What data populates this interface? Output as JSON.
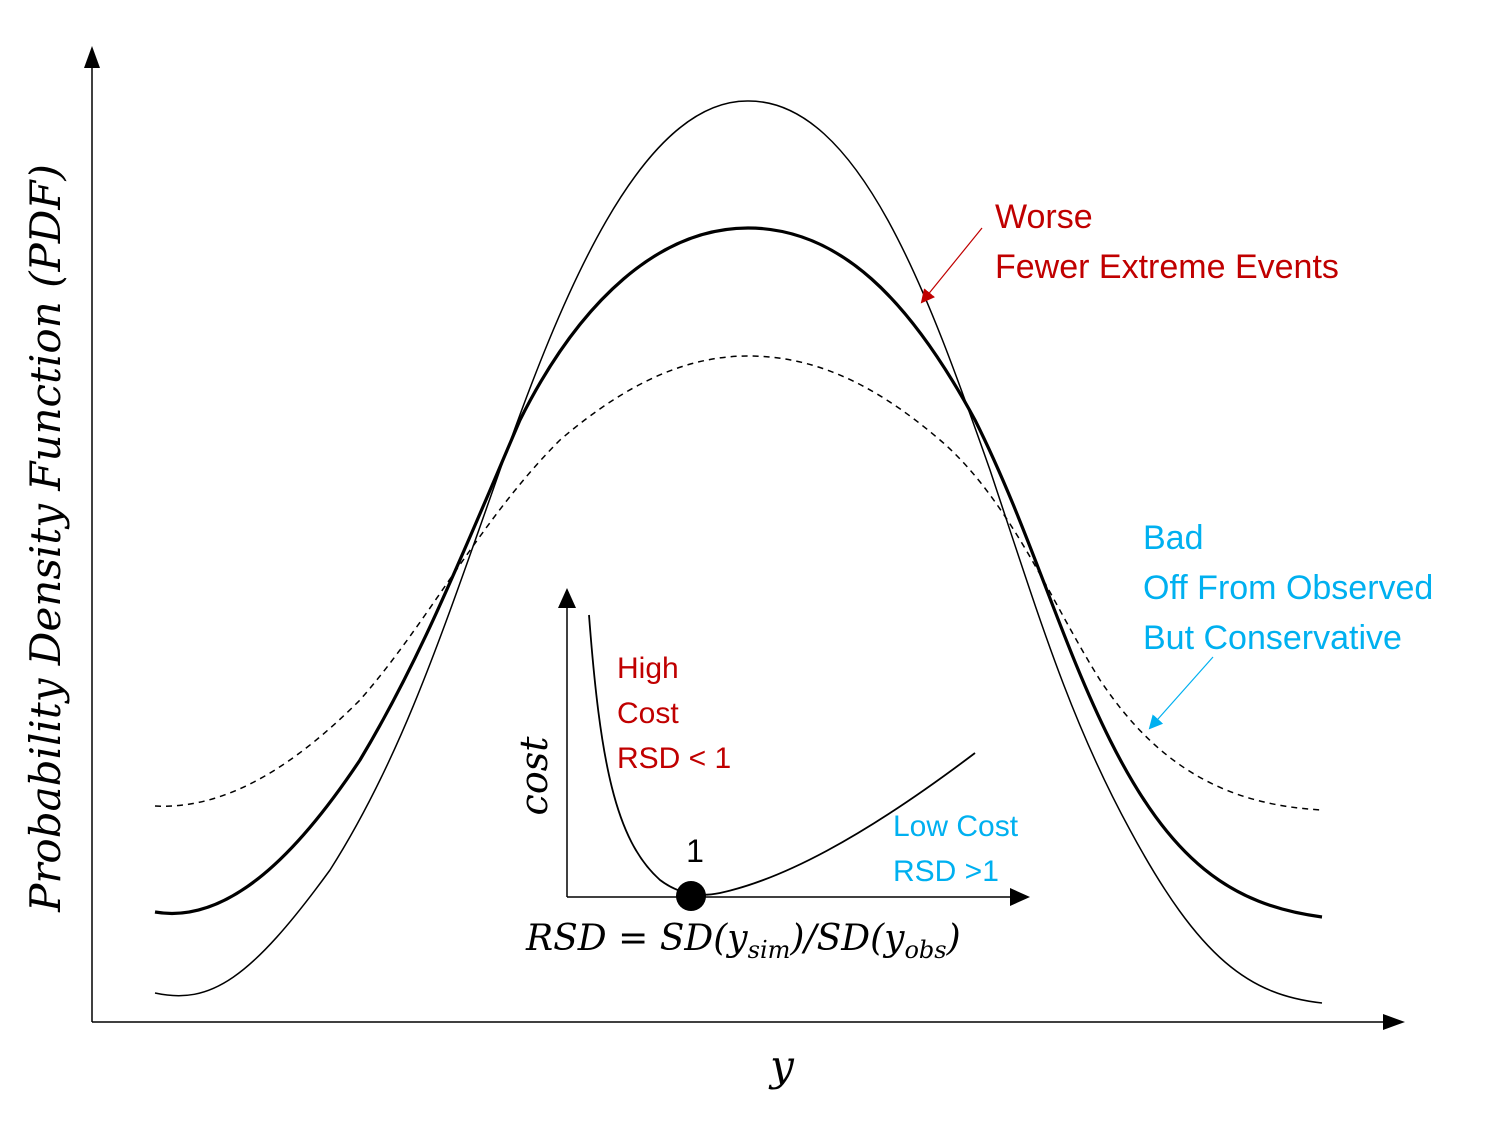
{
  "axes": {
    "y_label": "Probability Density Function (PDF)",
    "x_label": "y"
  },
  "annotations": {
    "worse": {
      "lines": [
        "Worse",
        "Fewer Extreme Events"
      ],
      "color": "#c00000"
    },
    "bad": {
      "lines": [
        "Bad",
        "Off From Observed",
        "But Conservative"
      ],
      "color": "#00b0f0"
    }
  },
  "inset": {
    "y_label": "cost",
    "minimum_label": "1",
    "high_cost": {
      "lines": [
        "High",
        "Cost",
        "RSD < 1"
      ],
      "color": "#c00000"
    },
    "low_cost": {
      "lines": [
        "Low Cost",
        "RSD >1"
      ],
      "color": "#00b0f0"
    },
    "formula": {
      "lhs": "RSD",
      "eq": "=",
      "sd1": "SD(y",
      "sub1": "sim",
      "mid": ")/SD(y",
      "sub2": "obs",
      "end": ")"
    }
  },
  "colors": {
    "curves": "#000000",
    "worse": "#c00000",
    "bad": "#00b0f0"
  }
}
